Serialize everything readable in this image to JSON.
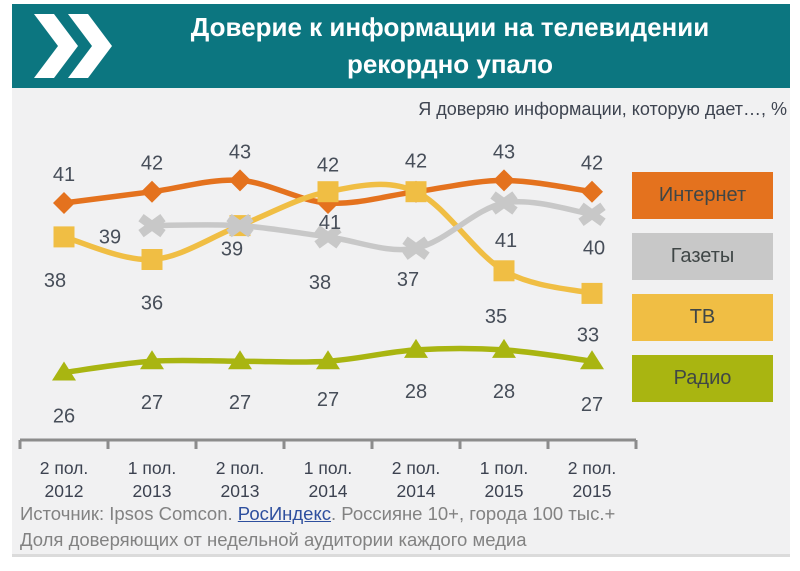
{
  "header": {
    "title_line1": "Доверие к информации на телевидении",
    "title_line2": "рекордно упало"
  },
  "subtitle": "Я доверяю информации, которую дает…, %",
  "chart_data": {
    "type": "line",
    "title": "Доверие к информации на телевидении рекордно упало",
    "subtitle": "Я доверяю информации, которую дает…, %",
    "categories": [
      [
        "2 пол.",
        "2012"
      ],
      [
        "1 пол.",
        "2013"
      ],
      [
        "2 пол.",
        "2013"
      ],
      [
        "1 пол.",
        "2014"
      ],
      [
        "2 пол.",
        "2014"
      ],
      [
        "1 пол.",
        "2015"
      ],
      [
        "2 пол.",
        "2015"
      ]
    ],
    "series": [
      {
        "name": "Интернет",
        "color": "#E4721E",
        "marker": "diamond",
        "values": [
          41,
          42,
          43,
          41,
          42,
          43,
          42
        ]
      },
      {
        "name": "Газеты",
        "color": "#C8C8C8",
        "marker": "x",
        "values": [
          null,
          39,
          39,
          38,
          37,
          41,
          40
        ]
      },
      {
        "name": "ТВ",
        "color": "#F0BE44",
        "marker": "square",
        "values": [
          38,
          36,
          39,
          42,
          42,
          35,
          33
        ]
      },
      {
        "name": "Радио",
        "color": "#A9B511",
        "marker": "triangle",
        "values": [
          26,
          27,
          27,
          27,
          28,
          28,
          27
        ]
      }
    ],
    "ylim": [
      24,
      46
    ],
    "grid": false,
    "legend_position": "right",
    "xlabel": "",
    "ylabel": ""
  },
  "footer": {
    "line1_prefix": "Источник: Ipsos Comcon. ",
    "link": "РосИндекс",
    "line1_suffix": ". Россияне 10+, города 100 тыс.+",
    "line2": "Доля доверяющих от недельной аудитории каждого медиа"
  },
  "colors": {
    "header_bg": "#0C7680",
    "panel_bg": "#F1F1F2",
    "label_text": "#474E59",
    "axis": "#8C8C8C",
    "axis_label_text": "#3C4250",
    "footer_text": "#828282",
    "link": "#2E4F9E"
  }
}
